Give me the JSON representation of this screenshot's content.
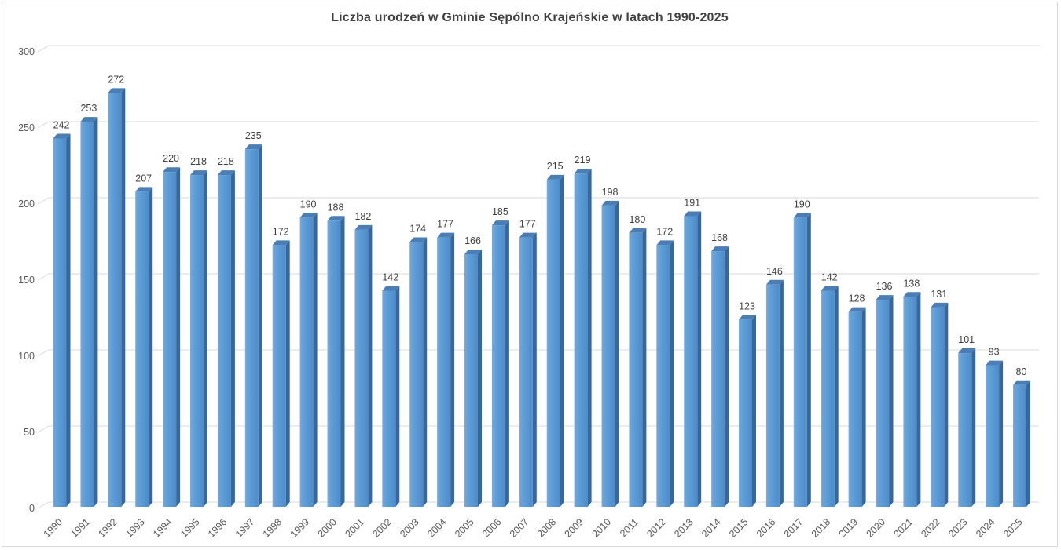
{
  "window": {
    "background_color": "#FFFFFF",
    "frame_border_color": "#D9D9D9"
  },
  "chart_data": {
    "type": "bar",
    "style": "3d-column",
    "title": "Liczba urodzeń w Gminie Sępólno Krajeńskie w latach 1990-2025",
    "xlabel": "",
    "ylabel": "",
    "categories": [
      "1990",
      "1991",
      "1992",
      "1993",
      "1994",
      "1995",
      "1996",
      "1997",
      "1998",
      "1999",
      "2000",
      "2001",
      "2002",
      "2003",
      "2004",
      "2005",
      "2006",
      "2007",
      "2008",
      "2009",
      "2010",
      "2011",
      "2012",
      "2013",
      "2014",
      "2015",
      "2016",
      "2017",
      "2018",
      "2019",
      "2020",
      "2021",
      "2022",
      "2023",
      "2024",
      "2025"
    ],
    "values": [
      242,
      253,
      272,
      207,
      220,
      218,
      218,
      235,
      172,
      190,
      188,
      182,
      142,
      174,
      177,
      166,
      185,
      177,
      215,
      219,
      198,
      180,
      172,
      191,
      168,
      123,
      146,
      190,
      142,
      128,
      136,
      138,
      131,
      101,
      93,
      80
    ],
    "data_labels_shown": true,
    "ylim": [
      0,
      300
    ],
    "yticks": [
      0,
      50,
      100,
      150,
      200,
      250,
      300
    ],
    "grid": "horizontal",
    "legend": "none",
    "colors": {
      "bar_front": "#5B9BD5",
      "bar_front_highlight": "#7FB0E0",
      "bar_front_shade": "#4E8CC9",
      "bar_side": "#38689B",
      "bar_top": "#4A7EB5",
      "gridline": "#D9D9D9",
      "title_text": "#404040",
      "axis_text": "#595959",
      "data_label_text": "#404040"
    }
  }
}
